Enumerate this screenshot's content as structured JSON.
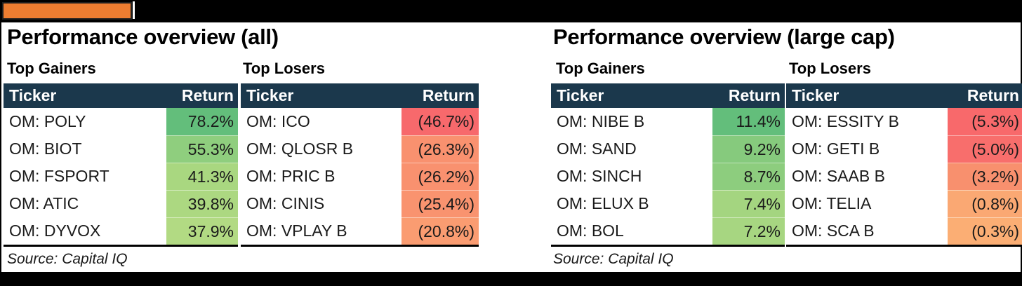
{
  "page": {
    "background": "#000000",
    "content_background": "#FFFFFF",
    "frame_border": "#000000"
  },
  "logo": {
    "fill": "#ED7D31",
    "border": "#1F1F1F"
  },
  "colors": {
    "table_header_bg": "#1B384C",
    "table_header_text": "#FFFFFF",
    "body_text": "#1A1A1A",
    "gain_max_green": "#63BE7B",
    "loss_max_red": "#F8696B"
  },
  "sections": [
    {
      "title": "Performance overview (all)",
      "source": "Source: Capital IQ",
      "tables": [
        {
          "subtitle": "Top Gainers",
          "columns": [
            "Ticker",
            "Return"
          ],
          "rows": [
            {
              "ticker": "OM: POLY",
              "return": "78.2%",
              "color": "#63BE7B"
            },
            {
              "ticker": "OM: BIOT",
              "return": "55.3%",
              "color": "#8FCE7E"
            },
            {
              "ticker": "OM: FSPORT",
              "return": "41.3%",
              "color": "#A9D780"
            },
            {
              "ticker": "OM: ATIC",
              "return": "39.8%",
              "color": "#ACD881"
            },
            {
              "ticker": "OM: DYVOX",
              "return": "37.9%",
              "color": "#B2DA83"
            }
          ]
        },
        {
          "subtitle": "Top Losers",
          "columns": [
            "Ticker",
            "Return"
          ],
          "rows": [
            {
              "ticker": "OM: ICO",
              "return": "(46.7%)",
              "color": "#F7696C"
            },
            {
              "ticker": "OM: QLOSR B",
              "return": "(26.3%)",
              "color": "#F9916F"
            },
            {
              "ticker": "OM: PRIC B",
              "return": "(26.2%)",
              "color": "#F9916F"
            },
            {
              "ticker": "OM: CINIS",
              "return": "(25.4%)",
              "color": "#F9936F"
            },
            {
              "ticker": "OM: VPLAY B",
              "return": "(20.8%)",
              "color": "#FA9C71"
            }
          ]
        }
      ]
    },
    {
      "title": "Performance overview (large cap)",
      "source": "Source: Capital IQ",
      "tables": [
        {
          "subtitle": "Top Gainers",
          "columns": [
            "Ticker",
            "Return"
          ],
          "rows": [
            {
              "ticker": "OM: NIBE B",
              "return": "11.4%",
              "color": "#63BE7B"
            },
            {
              "ticker": "OM: SAND",
              "return": "9.2%",
              "color": "#86CA7D"
            },
            {
              "ticker": "OM: SINCH",
              "return": "8.7%",
              "color": "#8DCD7E"
            },
            {
              "ticker": "OM: ELUX B",
              "return": "7.4%",
              "color": "#A4D580"
            },
            {
              "ticker": "OM: BOL",
              "return": "7.2%",
              "color": "#A7D681"
            }
          ]
        },
        {
          "subtitle": "Top Losers",
          "columns": [
            "Ticker",
            "Return"
          ],
          "rows": [
            {
              "ticker": "OM: ESSITY B",
              "return": "(5.3%)",
              "color": "#F8696B"
            },
            {
              "ticker": "OM: GETI B",
              "return": "(5.0%)",
              "color": "#F86E6C"
            },
            {
              "ticker": "OM: SAAB B",
              "return": "(3.2%)",
              "color": "#F8906E"
            },
            {
              "ticker": "OM: TELIA",
              "return": "(0.8%)",
              "color": "#FAA873"
            },
            {
              "ticker": "OM: SCA B",
              "return": "(0.3%)",
              "color": "#FBAE74"
            }
          ]
        }
      ]
    }
  ],
  "chart_data": [
    {
      "type": "table",
      "title": "Performance overview (all) — Top Gainers",
      "columns": [
        "Ticker",
        "Return"
      ],
      "unit": "%",
      "rows": [
        [
          "OM: POLY",
          78.2
        ],
        [
          "OM: BIOT",
          55.3
        ],
        [
          "OM: FSPORT",
          41.3
        ],
        [
          "OM: ATIC",
          39.8
        ],
        [
          "OM: DYVOX",
          37.9
        ]
      ]
    },
    {
      "type": "table",
      "title": "Performance overview (all) — Top Losers",
      "columns": [
        "Ticker",
        "Return"
      ],
      "unit": "%",
      "rows": [
        [
          "OM: ICO",
          -46.7
        ],
        [
          "OM: QLOSR B",
          -26.3
        ],
        [
          "OM: PRIC B",
          -26.2
        ],
        [
          "OM: CINIS",
          -25.4
        ],
        [
          "OM: VPLAY B",
          -20.8
        ]
      ]
    },
    {
      "type": "table",
      "title": "Performance overview (large cap) — Top Gainers",
      "columns": [
        "Ticker",
        "Return"
      ],
      "unit": "%",
      "rows": [
        [
          "OM: NIBE B",
          11.4
        ],
        [
          "OM: SAND",
          9.2
        ],
        [
          "OM: SINCH",
          8.7
        ],
        [
          "OM: ELUX B",
          7.4
        ],
        [
          "OM: BOL",
          7.2
        ]
      ]
    },
    {
      "type": "table",
      "title": "Performance overview (large cap) — Top Losers",
      "columns": [
        "Ticker",
        "Return"
      ],
      "unit": "%",
      "rows": [
        [
          "OM: ESSITY B",
          -5.3
        ],
        [
          "OM: GETI B",
          -5.0
        ],
        [
          "OM: SAAB B",
          -3.2
        ],
        [
          "OM: TELIA",
          -0.8
        ],
        [
          "OM: SCA B",
          -0.3
        ]
      ]
    }
  ]
}
